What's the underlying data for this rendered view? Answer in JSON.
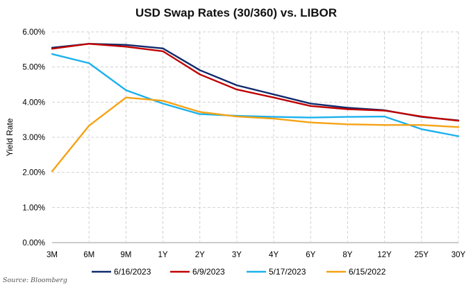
{
  "chart_data": {
    "type": "line",
    "title": "USD Swap Rates (30/360) vs. LIBOR",
    "xlabel": "",
    "ylabel": "Yield Rate",
    "categories": [
      "3M",
      "6M",
      "9M",
      "1Y",
      "2Y",
      "3Y",
      "4Y",
      "6Y",
      "8Y",
      "12Y",
      "25Y",
      "30Y"
    ],
    "ylim": [
      0,
      6
    ],
    "y_ticks": [
      "0.00%",
      "1.00%",
      "2.00%",
      "3.00%",
      "4.00%",
      "5.00%",
      "6.00%"
    ],
    "grid": true,
    "legend_position": "bottom",
    "series": [
      {
        "name": "6/16/2023",
        "color": "#0f2a6b",
        "values": [
          5.55,
          5.66,
          5.63,
          5.53,
          4.91,
          4.48,
          4.22,
          3.96,
          3.84,
          3.77,
          3.58,
          3.48
        ]
      },
      {
        "name": "6/9/2023",
        "color": "#c00000",
        "values": [
          5.52,
          5.66,
          5.58,
          5.45,
          4.79,
          4.36,
          4.13,
          3.89,
          3.8,
          3.76,
          3.59,
          3.47
        ]
      },
      {
        "name": "5/17/2023",
        "color": "#1ab1ec",
        "values": [
          5.37,
          5.11,
          4.34,
          3.96,
          3.66,
          3.61,
          3.58,
          3.56,
          3.58,
          3.59,
          3.23,
          3.03
        ]
      },
      {
        "name": "6/15/2022",
        "color": "#f5a214",
        "values": [
          2.03,
          3.33,
          4.13,
          4.04,
          3.72,
          3.59,
          3.53,
          3.42,
          3.37,
          3.35,
          3.35,
          3.29
        ]
      }
    ]
  },
  "source_note": "Source: Bloomberg"
}
